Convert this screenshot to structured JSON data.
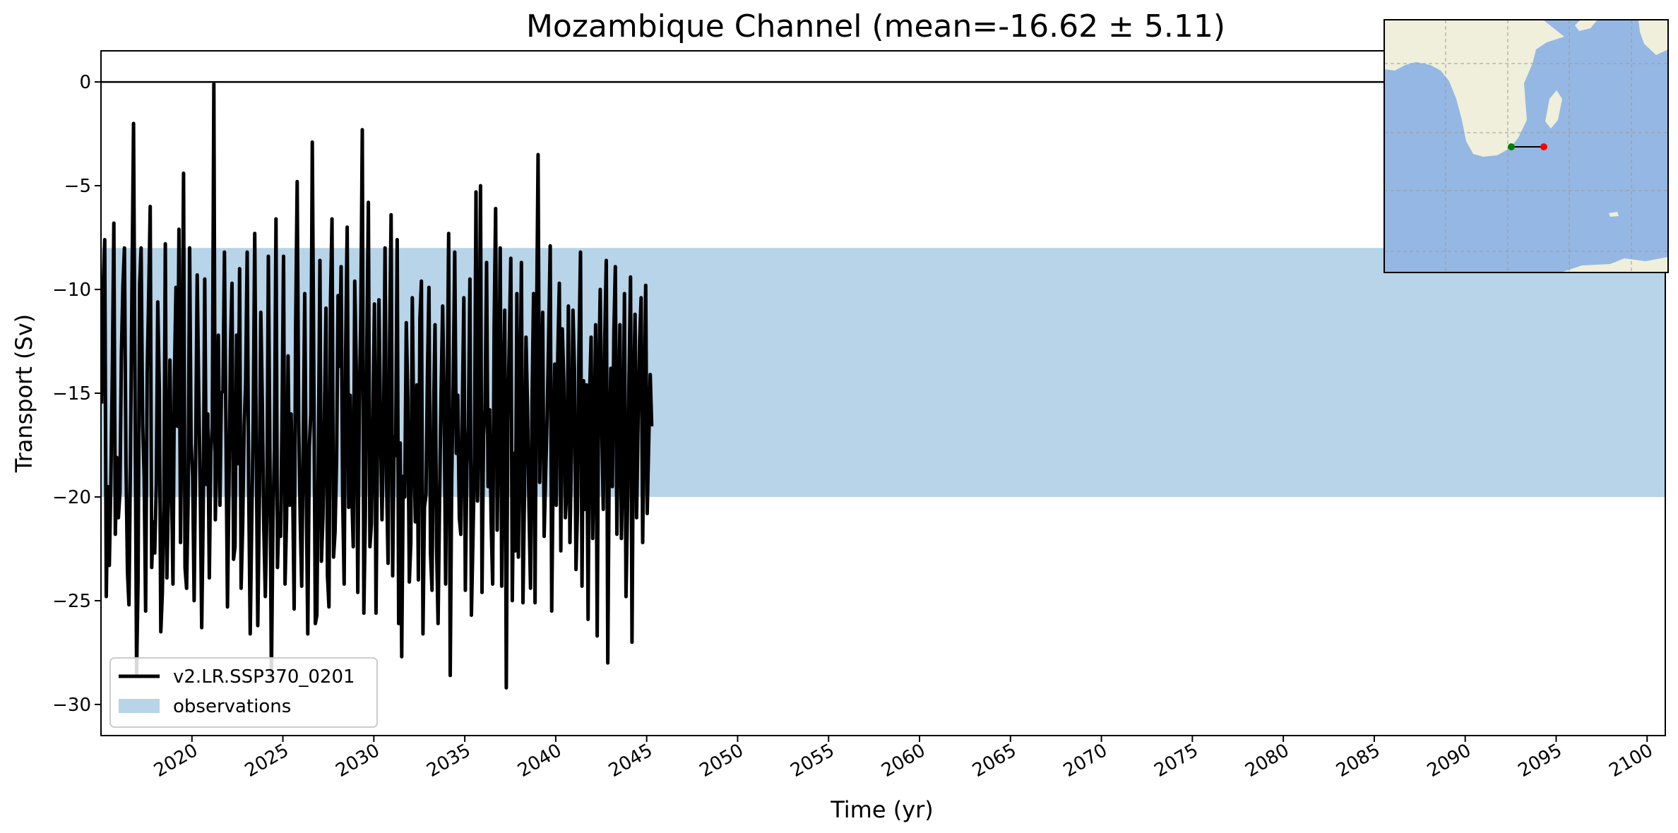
{
  "chart_data": {
    "type": "line",
    "title": "Mozambique Channel (mean=-16.62 ± 5.11)",
    "xlabel": "Time (yr)",
    "ylabel": "Transport (Sv)",
    "xlim": [
      2015,
      2101
    ],
    "ylim": [
      -31.5,
      1.5
    ],
    "xticks": [
      2020,
      2025,
      2030,
      2035,
      2040,
      2045,
      2050,
      2055,
      2060,
      2065,
      2070,
      2075,
      2080,
      2085,
      2090,
      2095,
      2100
    ],
    "xtick_labels": [
      "2020",
      "2025",
      "2030",
      "2035",
      "2040",
      "2045",
      "2050",
      "2055",
      "2060",
      "2065",
      "2070",
      "2075",
      "2080",
      "2085",
      "2090",
      "2095",
      "2100"
    ],
    "yticks": [
      0,
      -5,
      -10,
      -15,
      -20,
      -25,
      -30
    ],
    "ytick_labels": [
      "0",
      "−5",
      "−10",
      "−15",
      "−20",
      "−25",
      "−30"
    ],
    "zero_line": 0,
    "observations_band": {
      "label": "observations",
      "ymin": -20,
      "ymax": -8,
      "color": "#b7d4e8"
    },
    "grid": false,
    "legend": {
      "placement": "lower-left",
      "entries": [
        {
          "label": "v2.LR.SSP370_0201",
          "kind": "line",
          "color": "#000000"
        },
        {
          "label": "observations",
          "kind": "patch",
          "color": "#b7d4e8"
        }
      ]
    },
    "series": [
      {
        "name": "v2.LR.SSP370_0201",
        "color": "#000000",
        "x_start": 2015.04,
        "x_step": 0.0833,
        "values": [
          -15.5,
          -9.8,
          -7.6,
          -24.8,
          -19.5,
          -23.3,
          -19.4,
          -14.2,
          -6.8,
          -21.8,
          -18.1,
          -21.0,
          -19.8,
          -13.1,
          -9.8,
          -8.0,
          -18.4,
          -23.6,
          -25.2,
          -17.8,
          -9.8,
          -2.0,
          -14.8,
          -28.5,
          -24.0,
          -9.8,
          -8.0,
          -16.5,
          -19.0,
          -25.5,
          -14.0,
          -10.4,
          -6.0,
          -23.4,
          -21.2,
          -22.7,
          -19.4,
          -10.6,
          -14.8,
          -26.5,
          -24.7,
          -20.5,
          -7.8,
          -23.9,
          -20.0,
          -13.4,
          -18.8,
          -24.2,
          -14.1,
          -9.9,
          -16.6,
          -7.1,
          -22.2,
          -15.2,
          -4.4,
          -23.4,
          -24.4,
          -20.3,
          -8.0,
          -17.4,
          -19.0,
          -25.0,
          -18.0,
          -9.3,
          -14.8,
          -19.5,
          -26.3,
          -20.6,
          -9.5,
          -19.4,
          -16.0,
          -23.9,
          -17.9,
          -16.6,
          -0.1,
          -21.1,
          -17.2,
          -12.2,
          -20.4,
          -15.0,
          -14.9,
          -8.2,
          -17.1,
          -25.3,
          -19.5,
          -12.8,
          -9.7,
          -23.0,
          -22.4,
          -12.2,
          -18.4,
          -9.0,
          -24.4,
          -21.4,
          -16.6,
          -14.5,
          -8.2,
          -19.4,
          -26.6,
          -21.4,
          -16.2,
          -7.3,
          -17.7,
          -26.2,
          -20.4,
          -11.1,
          -15.4,
          -21.6,
          -24.8,
          -20.6,
          -8.4,
          -18.0,
          -28.7,
          -21.2,
          -17.7,
          -6.6,
          -23.4,
          -20.8,
          -21.9,
          -16.5,
          -8.4,
          -24.2,
          -21.0,
          -13.2,
          -20.4,
          -16.0,
          -19.6,
          -25.4,
          -11.9,
          -4.8,
          -16.3,
          -21.1,
          -24.3,
          -17.4,
          -10.2,
          -19.9,
          -26.6,
          -17.6,
          -16.0,
          -2.9,
          -14.3,
          -26.1,
          -25.7,
          -17.9,
          -8.6,
          -23.1,
          -21.0,
          -15.9,
          -10.9,
          -23.8,
          -25.3,
          -10.5,
          -6.6,
          -22.9,
          -21.7,
          -18.2,
          -10.3,
          -13.7,
          -8.9,
          -20.0,
          -24.2,
          -13.1,
          -7.0,
          -20.5,
          -15.1,
          -19.7,
          -22.4,
          -9.6,
          -13.9,
          -24.6,
          -15.6,
          -11.2,
          -2.3,
          -25.6,
          -20.9,
          -12.6,
          -5.8,
          -22.4,
          -21.3,
          -16.0,
          -10.7,
          -25.6,
          -17.6,
          -10.5,
          -16.6,
          -21.1,
          -16.7,
          -8.0,
          -19.3,
          -23.2,
          -12.6,
          -6.4,
          -23.8,
          -17.1,
          -18.0,
          -7.6,
          -26.1,
          -17.4,
          -27.7,
          -19.0,
          -20.0,
          -11.6,
          -15.2,
          -24.1,
          -22.2,
          -10.4,
          -17.2,
          -21.2,
          -14.6,
          -24.0,
          -11.4,
          -9.6,
          -26.6,
          -20.5,
          -19.9,
          -14.0,
          -9.9,
          -22.7,
          -24.5,
          -16.0,
          -11.7,
          -22.4,
          -26.1,
          -20.0,
          -14.9,
          -10.8,
          -15.7,
          -24.2,
          -15.1,
          -7.3,
          -28.6,
          -19.2,
          -14.5,
          -8.2,
          -17.9,
          -15.1,
          -21.0,
          -21.8,
          -15.8,
          -10.4,
          -24.5,
          -18.5,
          -16.6,
          -9.5,
          -25.7,
          -22.0,
          -18.2,
          -5.3,
          -20.2,
          -15.6,
          -5.0,
          -24.6,
          -17.0,
          -15.8,
          -8.7,
          -19.5,
          -15.8,
          -21.1,
          -24.2,
          -11.7,
          -6.1,
          -21.6,
          -15.5,
          -8.0,
          -24.3,
          -15.6,
          -11.0,
          -29.2,
          -16.4,
          -12.4,
          -8.5,
          -25.0,
          -17.9,
          -22.6,
          -10.2,
          -22.9,
          -16.0,
          -8.7,
          -25.1,
          -20.0,
          -12.3,
          -15.6,
          -20.5,
          -24.4,
          -15.6,
          -10.2,
          -25.1,
          -11.6,
          -3.5,
          -19.3,
          -15.4,
          -11.1,
          -21.9,
          -18.9,
          -16.1,
          -12.2,
          -7.9,
          -25.5,
          -18.2,
          -13.6,
          -20.4,
          -13.2,
          -9.7,
          -22.6,
          -11.9,
          -14.5,
          -21.0,
          -19.6,
          -10.8,
          -22.2,
          -18.0,
          -11.0,
          -13.8,
          -23.5,
          -20.6,
          -12.8,
          -8.2,
          -24.3,
          -14.4,
          -20.6,
          -14.6,
          -25.9,
          -15.0,
          -12.3,
          -22.0,
          -17.2,
          -11.7,
          -26.7,
          -14.6,
          -10.0,
          -16.5,
          -20.6,
          -12.4,
          -8.6,
          -28.0,
          -17.4,
          -13.8,
          -19.5,
          -12.1,
          -8.9,
          -21.8,
          -16.3,
          -11.7,
          -22.0,
          -18.1,
          -10.2,
          -24.8,
          -20.5,
          -14.2,
          -9.4,
          -27.0,
          -15.1,
          -11.2,
          -21.0,
          -16.3,
          -12.5,
          -10.4,
          -22.2,
          -16.0,
          -9.8,
          -20.8,
          -17.5,
          -14.1,
          -16.6
        ]
      }
    ],
    "inset_map": {
      "land_color": "#efefdb",
      "ocean_color": "#95b7e3",
      "section_start_color": "#008000",
      "section_end_color": "#ff0000"
    }
  }
}
